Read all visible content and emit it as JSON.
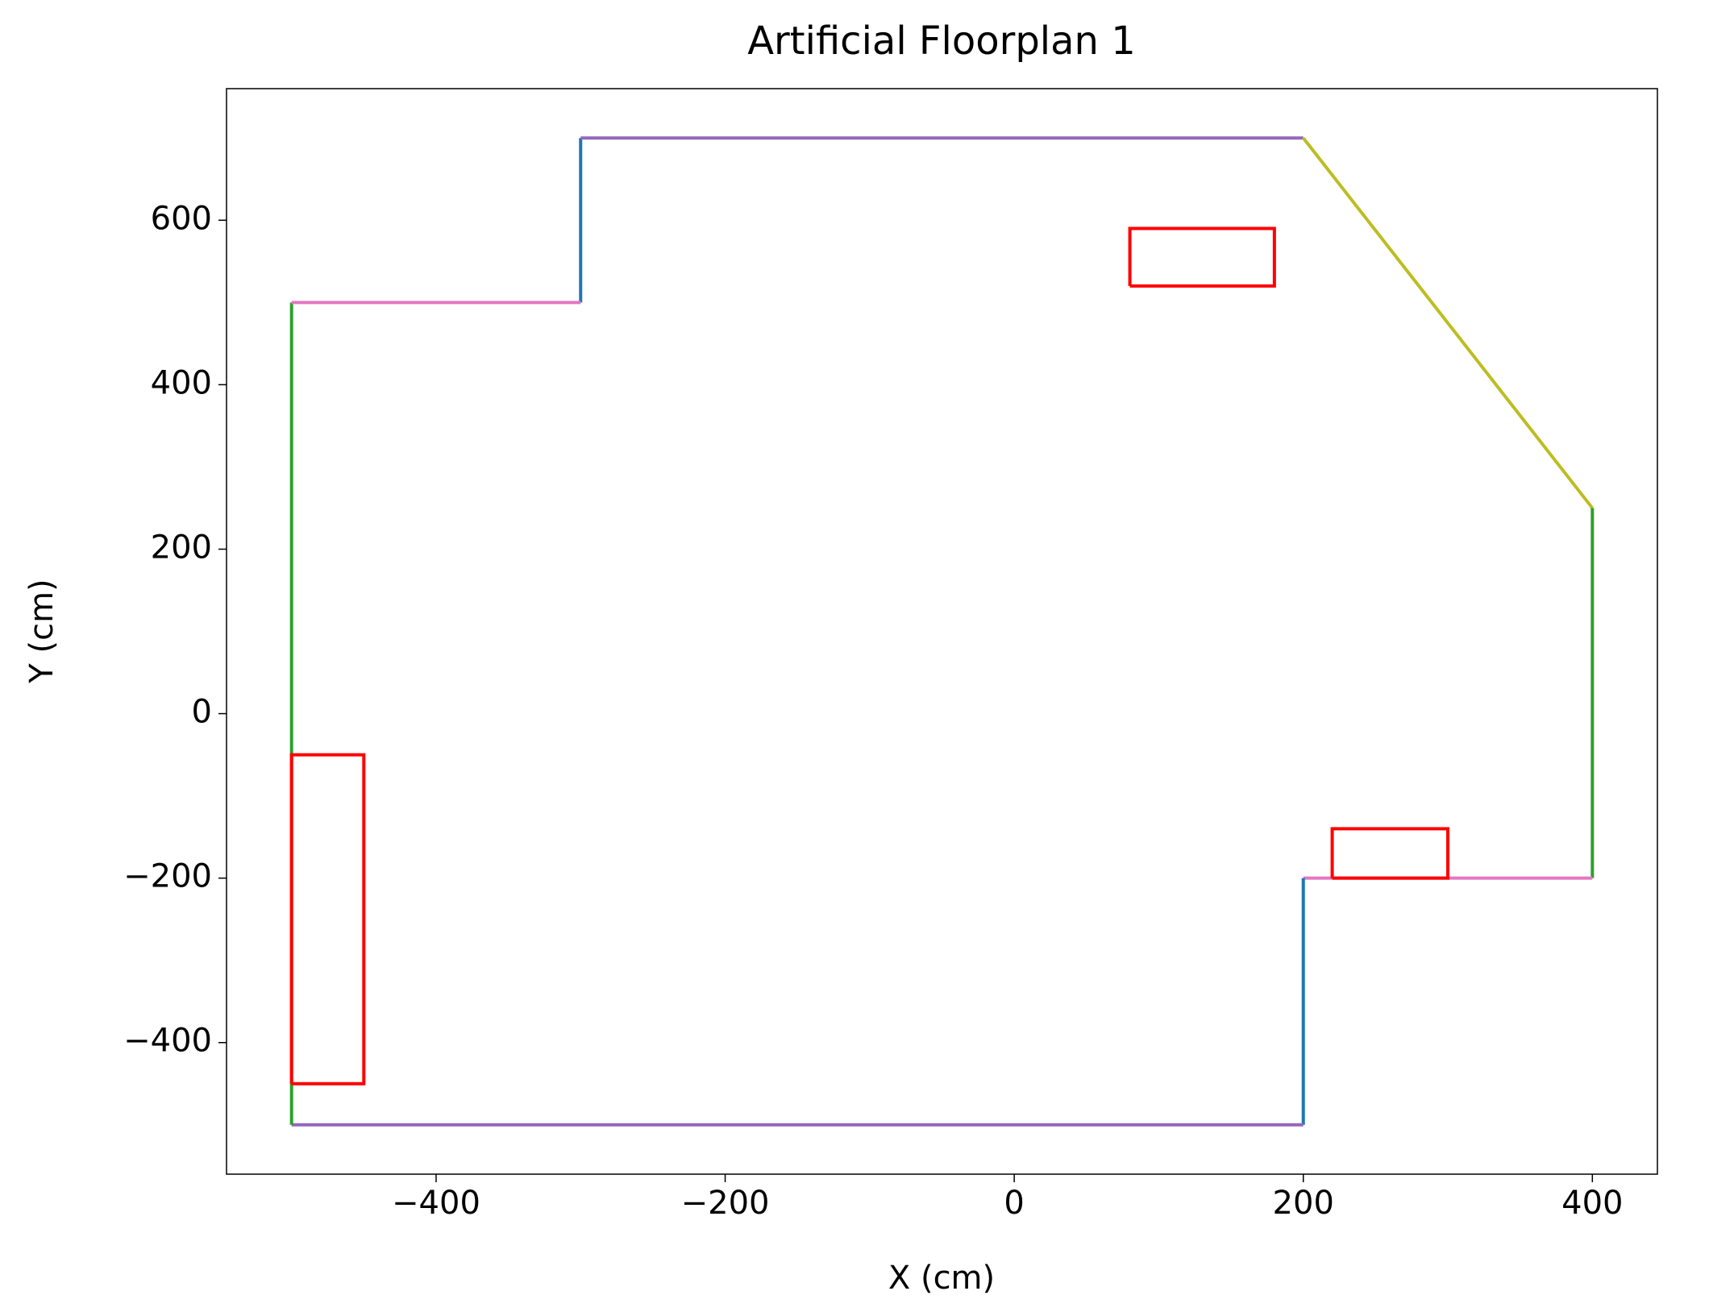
{
  "chart_data": {
    "type": "line",
    "title": "Artificial Floorplan 1",
    "x_label": "X (cm)",
    "y_label": "Y (cm)",
    "xlim": [
      -545,
      445
    ],
    "ylim": [
      -560,
      760
    ],
    "xticks": [
      {
        "value": -400,
        "label": "−400"
      },
      {
        "value": -200,
        "label": "−200"
      },
      0,
      200,
      400
    ],
    "yticks": [
      {
        "value": -400,
        "label": "−400"
      },
      {
        "value": -200,
        "label": "−200"
      },
      0,
      200,
      400,
      600
    ],
    "grid": false,
    "series": [
      {
        "color": "#1f77b4",
        "x": [
          -300,
          -300
        ],
        "y": [
          500,
          700
        ]
      },
      {
        "color": "#9467bd",
        "x": [
          -300,
          200
        ],
        "y": [
          700,
          700
        ]
      },
      {
        "color": "#bcbd22",
        "x": [
          200,
          400
        ],
        "y": [
          700,
          250
        ]
      },
      {
        "color": "#2ca02c",
        "x": [
          400,
          400
        ],
        "y": [
          250,
          -200
        ]
      },
      {
        "color": "#e377c2",
        "x": [
          400,
          200
        ],
        "y": [
          -200,
          -200
        ]
      },
      {
        "color": "#1f77b4",
        "x": [
          200,
          200
        ],
        "y": [
          -200,
          -500
        ]
      },
      {
        "color": "#9467bd",
        "x": [
          200,
          -500
        ],
        "y": [
          -500,
          -500
        ]
      },
      {
        "color": "#2ca02c",
        "x": [
          -500,
          -500
        ],
        "y": [
          -500,
          500
        ]
      },
      {
        "color": "#e377c2",
        "x": [
          -500,
          -300
        ],
        "y": [
          500,
          500
        ]
      },
      {
        "color": "#ff0000",
        "x": [
          -500,
          -450,
          -450,
          -500,
          -500
        ],
        "y": [
          -450,
          -450,
          -50,
          -50,
          -450
        ]
      },
      {
        "color": "#ff0000",
        "x": [
          80,
          180,
          180,
          80,
          80
        ],
        "y": [
          520,
          520,
          590,
          590,
          520
        ]
      },
      {
        "color": "#ff0000",
        "x": [
          220,
          300,
          300,
          220,
          220
        ],
        "y": [
          -200,
          -200,
          -140,
          -140,
          -200
        ]
      }
    ]
  }
}
